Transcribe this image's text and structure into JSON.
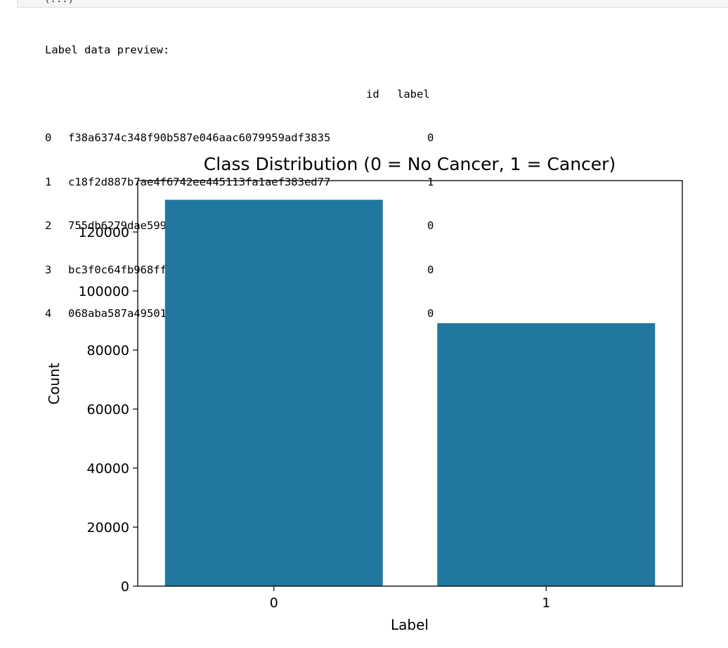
{
  "cell_fragment": "(...)",
  "output": {
    "preview_heading": "Label data preview:",
    "columns": [
      "id",
      "label"
    ],
    "rows": [
      {
        "index": "0",
        "id": "f38a6374c348f90b587e046aac6079959adf3835",
        "label": "0"
      },
      {
        "index": "1",
        "id": "c18f2d887b7ae4f6742ee445113fa1aef383ed77",
        "label": "1"
      },
      {
        "index": "2",
        "id": "755db6279dae599ebb4d39a9123cce439965282d",
        "label": "0"
      },
      {
        "index": "3",
        "id": "bc3f0c64fb968ff4a8bd33af6971ecae77c75e08",
        "label": "0"
      },
      {
        "index": "4",
        "id": "068aba587a4950175d04c680d38943fd488d6a9d",
        "label": "0"
      }
    ]
  },
  "chart_data": {
    "type": "bar",
    "title": "Class Distribution (0 = No Cancer, 1 = Cancer)",
    "xlabel": "Label",
    "ylabel": "Count",
    "categories": [
      "0",
      "1"
    ],
    "values": [
      130908,
      89117
    ],
    "ylim": [
      0,
      137400
    ],
    "yticks": [
      0,
      20000,
      40000,
      60000,
      80000,
      100000,
      120000
    ],
    "bar_color": "#2277a0",
    "grid": false
  }
}
